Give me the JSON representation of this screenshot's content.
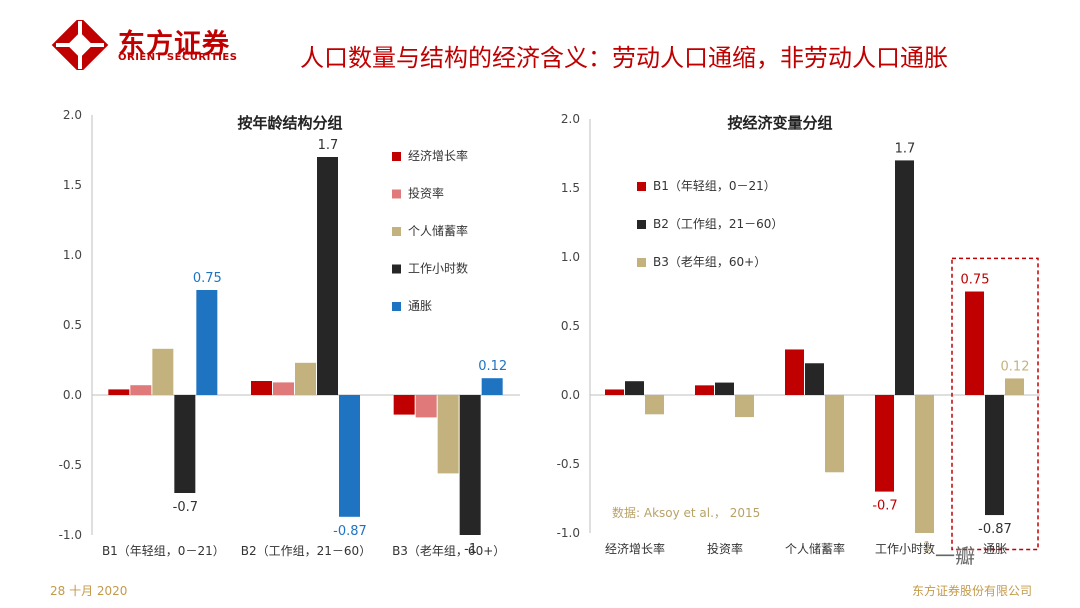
{
  "header": {
    "logo_cn": "东方证券",
    "logo_en": "ORIENT SECURITIES",
    "title": "人口数量与结构的经济含义：劳动人口通缩，非劳动人口通胀"
  },
  "footer": {
    "date": "28 十月 2020",
    "company": "东方证券股份有限公司",
    "watermark": "一瓣"
  },
  "colors": {
    "brand": "#c00000",
    "red": "#c00000",
    "pink": "#e07a7a",
    "tan": "#c4b27e",
    "black": "#262626",
    "blue": "#1f74c2",
    "footer": "#c49a4a"
  },
  "chart_data": [
    {
      "type": "bar",
      "title": "按年龄结构分组",
      "ylim": [
        -1.0,
        2.0
      ],
      "yticks": [
        "2.0",
        "1.5",
        "1.0",
        "0.5",
        "0.0",
        "-0.5",
        "-1.0"
      ],
      "categories": [
        "B1（年轻组，0－21）",
        "B2（工作组，21－60）",
        "B3（老年组，60+）"
      ],
      "series": [
        {
          "name": "经济增长率",
          "color": "#c00000",
          "values": [
            0.04,
            0.1,
            -0.14
          ]
        },
        {
          "name": "投资率",
          "color": "#e07a7a",
          "values": [
            0.07,
            0.09,
            -0.16
          ]
        },
        {
          "name": "个人储蓄率",
          "color": "#c4b27e",
          "values": [
            0.33,
            0.23,
            -0.56
          ]
        },
        {
          "name": "工作小时数",
          "color": "#262626",
          "values": [
            -0.7,
            1.7,
            -1.0
          ]
        },
        {
          "name": "通胀",
          "color": "#1f74c2",
          "values": [
            0.75,
            -0.87,
            0.12
          ]
        }
      ],
      "data_labels": [
        {
          "text": "0.75",
          "series": 4,
          "category": 0,
          "color": "#1f74c2"
        },
        {
          "text": "-0.7",
          "series": 3,
          "category": 0,
          "color": "#333333"
        },
        {
          "text": "1.7",
          "series": 3,
          "category": 1,
          "color": "#333333"
        },
        {
          "text": "-0.87",
          "series": 4,
          "category": 1,
          "color": "#1f74c2"
        },
        {
          "text": "-1",
          "series": 3,
          "category": 2,
          "color": "#333333"
        },
        {
          "text": "0.12",
          "series": 4,
          "category": 2,
          "color": "#1f74c2"
        }
      ]
    },
    {
      "type": "bar",
      "title": "按经济变量分组",
      "ylim": [
        -1.0,
        2.0
      ],
      "yticks": [
        "2.0",
        "1.5",
        "1.0",
        "0.5",
        "0.0",
        "-0.5",
        "-1.0"
      ],
      "categories": [
        "经济增长率",
        "投资率",
        "个人储蓄率",
        "工作小时数",
        "通胀"
      ],
      "series": [
        {
          "name": "B1（年轻组，0－21）",
          "color": "#c00000",
          "values": [
            0.04,
            0.07,
            0.33,
            -0.7,
            0.75
          ]
        },
        {
          "name": "B2（工作组，21－60）",
          "color": "#262626",
          "values": [
            0.1,
            0.09,
            0.23,
            1.7,
            -0.87
          ]
        },
        {
          "name": "B3（老年组，60+）",
          "color": "#c4b27e",
          "values": [
            -0.14,
            -0.16,
            -0.56,
            -1.0,
            0.12
          ]
        }
      ],
      "data_labels": [
        {
          "text": "1.7",
          "series": 1,
          "category": 3,
          "color": "#333333"
        },
        {
          "text": "-0.7",
          "series": 0,
          "category": 3,
          "color": "#c00000"
        },
        {
          "text": "-1",
          "series": 2,
          "category": 3,
          "color": "#c4b27e"
        },
        {
          "text": "0.75",
          "series": 0,
          "category": 4,
          "color": "#c00000"
        },
        {
          "text": "-0.87",
          "series": 1,
          "category": 4,
          "color": "#333333"
        },
        {
          "text": "0.12",
          "series": 2,
          "category": 4,
          "color": "#c4b27e"
        }
      ],
      "source_note": "数据: Aksoy et al.， 2015",
      "highlight_category": 4
    }
  ]
}
